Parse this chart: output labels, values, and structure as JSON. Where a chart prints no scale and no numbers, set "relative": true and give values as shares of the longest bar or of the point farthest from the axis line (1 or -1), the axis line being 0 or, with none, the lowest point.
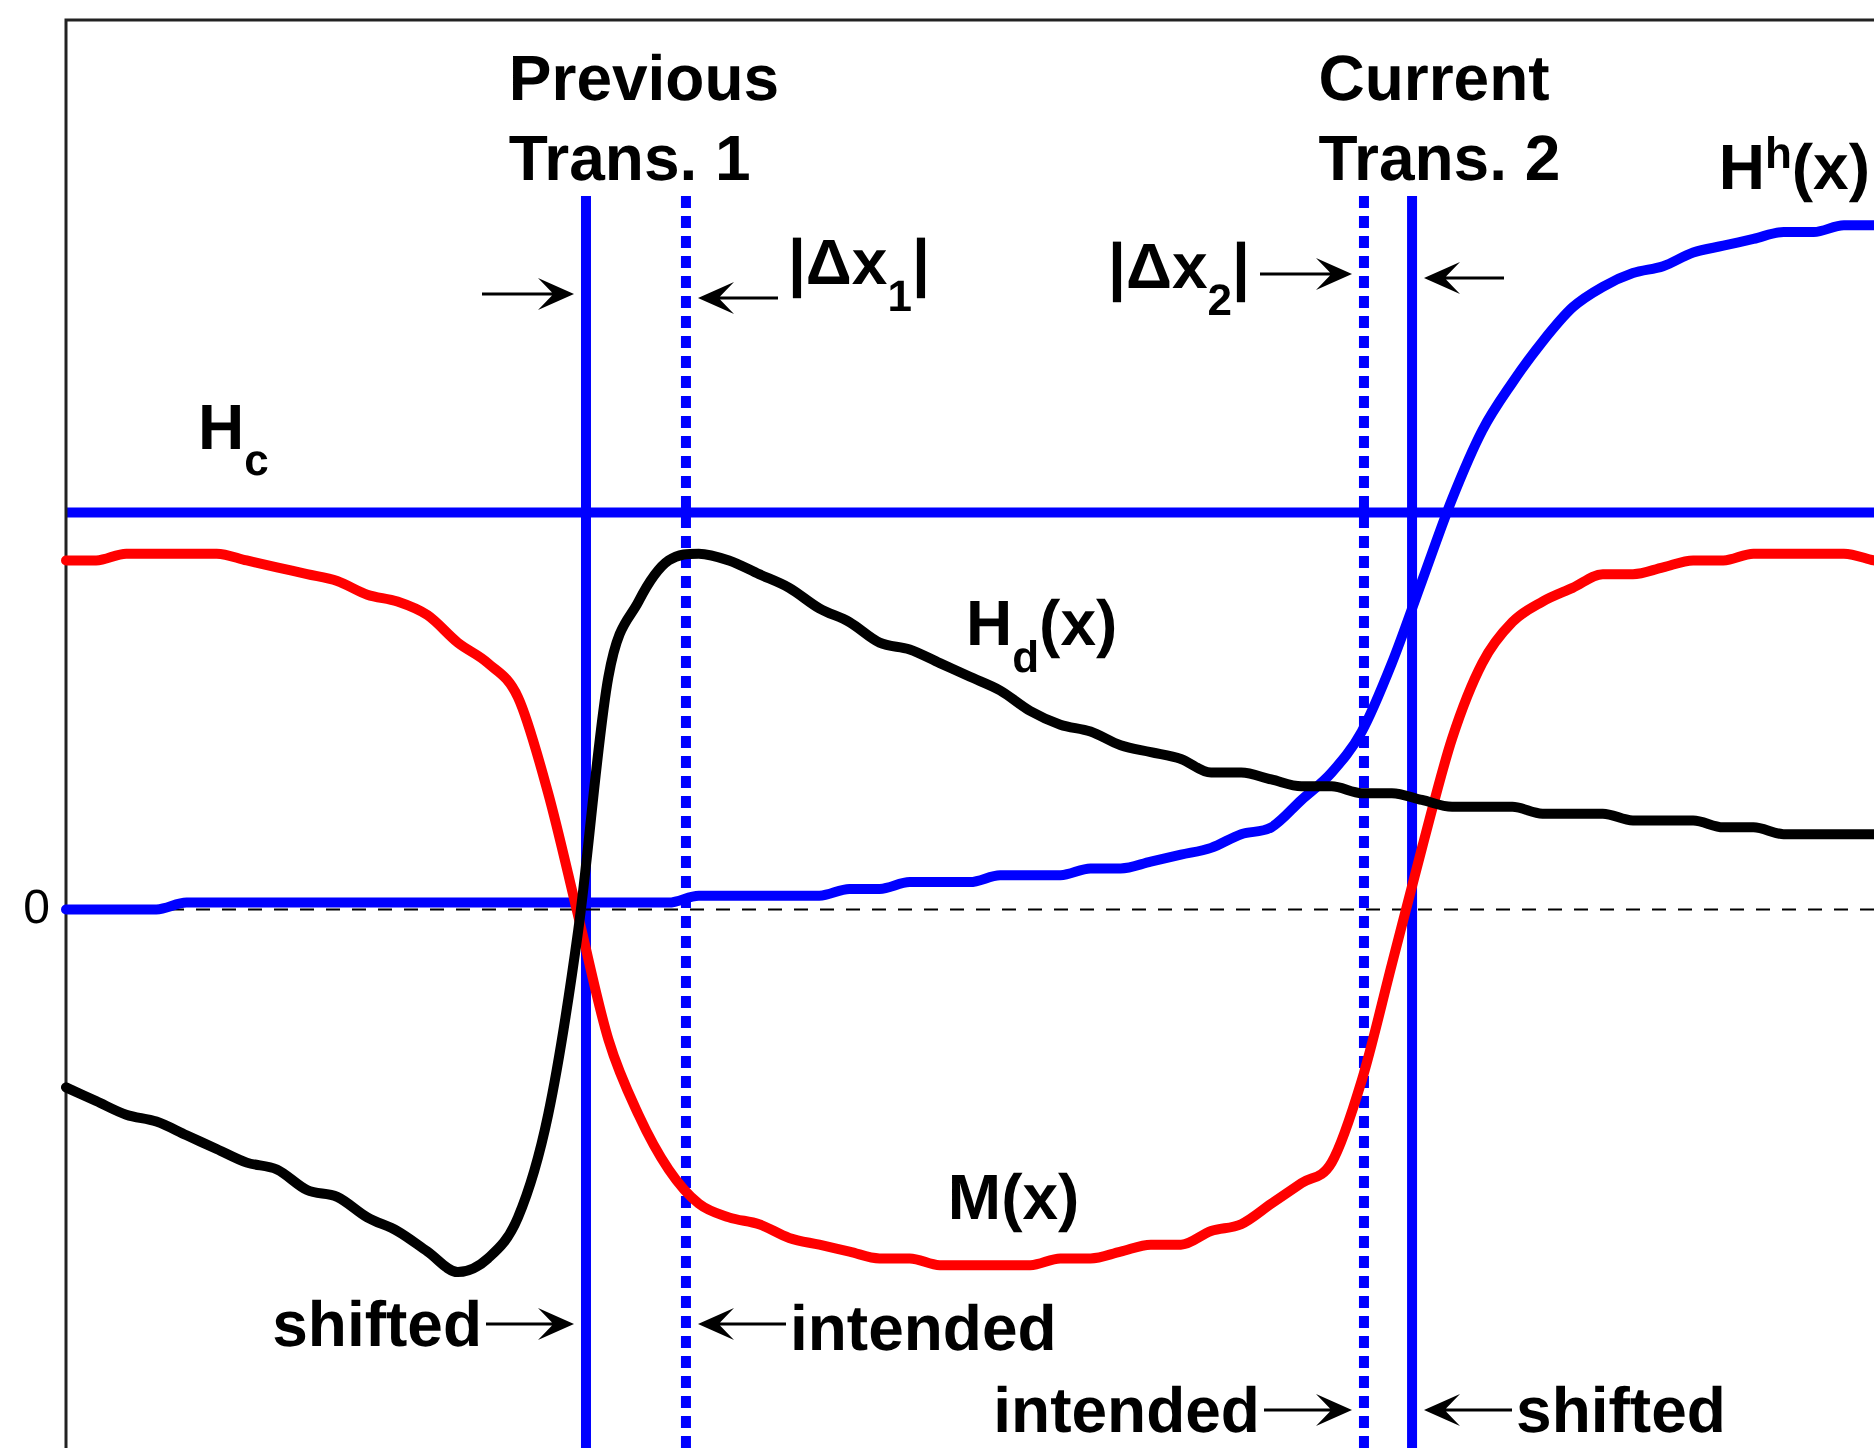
{
  "chart_data": {
    "type": "line",
    "relative": true,
    "categories": [
      null,
      null,
      null,
      null,
      null,
      null,
      null,
      null,
      null,
      null,
      null,
      null,
      null,
      null,
      null,
      null,
      null,
      null,
      null,
      null,
      null,
      null,
      null,
      null,
      null,
      null,
      null,
      null,
      null,
      null,
      null,
      null,
      null,
      null,
      null,
      null,
      null,
      null,
      null,
      null,
      null,
      null,
      null,
      null,
      null,
      null,
      null,
      null,
      null,
      null,
      null,
      null,
      null,
      null,
      null,
      null,
      null,
      null,
      null,
      null,
      null
    ],
    "series": [
      {
        "name": "H$^{h}$(x)",
        "color": "#0000ff",
        "values": [
          0.0,
          0.0,
          0.0,
          0.0,
          0.01,
          0.01,
          0.01,
          0.01,
          0.01,
          0.01,
          0.01,
          0.01,
          0.01,
          0.01,
          0.01,
          0.01,
          0.01,
          0.01,
          0.01,
          0.01,
          0.01,
          0.02,
          0.02,
          0.02,
          0.02,
          0.02,
          0.03,
          0.03,
          0.04,
          0.04,
          0.04,
          0.05,
          0.05,
          0.05,
          0.06,
          0.06,
          0.07,
          0.08,
          0.09,
          0.11,
          0.12,
          0.16,
          0.2,
          0.26,
          0.36,
          0.48,
          0.6,
          0.7,
          0.77,
          0.83,
          0.88,
          0.91,
          0.93,
          0.94,
          0.96,
          0.97,
          0.98,
          0.99,
          0.99,
          1.0,
          1.0
        ]
      },
      {
        "name": "M(x)",
        "color": "#ff0000",
        "values": [
          0.51,
          0.51,
          0.52,
          0.52,
          0.52,
          0.52,
          0.51,
          0.5,
          0.49,
          0.48,
          0.46,
          0.45,
          0.43,
          0.39,
          0.36,
          0.31,
          0.17,
          -0.01,
          -0.19,
          -0.3,
          -0.38,
          -0.43,
          -0.45,
          -0.46,
          -0.48,
          -0.49,
          -0.5,
          -0.51,
          -0.51,
          -0.52,
          -0.52,
          -0.52,
          -0.52,
          -0.51,
          -0.51,
          -0.5,
          -0.49,
          -0.49,
          -0.47,
          -0.46,
          -0.43,
          -0.4,
          -0.37,
          -0.25,
          -0.08,
          0.09,
          0.25,
          0.36,
          0.42,
          0.45,
          0.47,
          0.49,
          0.49,
          0.5,
          0.51,
          0.51,
          0.52,
          0.52,
          0.52,
          0.52,
          0.51
        ]
      },
      {
        "name": "H$_{d}$(x)",
        "color": "#000000",
        "values": [
          -0.26,
          -0.28,
          -0.3,
          -0.31,
          -0.33,
          -0.35,
          -0.37,
          -0.38,
          -0.41,
          -0.42,
          -0.45,
          -0.47,
          -0.5,
          -0.53,
          -0.51,
          -0.45,
          -0.3,
          -0.03,
          0.34,
          0.45,
          0.51,
          0.52,
          0.51,
          0.49,
          0.47,
          0.44,
          0.42,
          0.39,
          0.38,
          0.36,
          0.34,
          0.32,
          0.29,
          0.27,
          0.26,
          0.24,
          0.23,
          0.22,
          0.2,
          0.2,
          0.19,
          0.18,
          0.18,
          0.17,
          0.17,
          0.16,
          0.15,
          0.15,
          0.15,
          0.14,
          0.14,
          0.14,
          0.13,
          0.13,
          0.13,
          0.12,
          0.12,
          0.11,
          0.11,
          0.11,
          0.11
        ]
      }
    ],
    "ref_lines": [
      {
        "axis": "y",
        "value": 0,
        "label": "0",
        "color": "#000000",
        "line_style": "dashed"
      },
      {
        "axis": "y",
        "value": 0.58,
        "label": "H$_{c}$",
        "color": "#0000ff"
      }
    ],
    "annotations": [
      "Previous Trans. 1",
      "Current Trans. 2",
      "|Δx$_{1}$|",
      "|Δx$_{2}$|",
      "shifted",
      "intended",
      "intended",
      "shifted"
    ]
  }
}
